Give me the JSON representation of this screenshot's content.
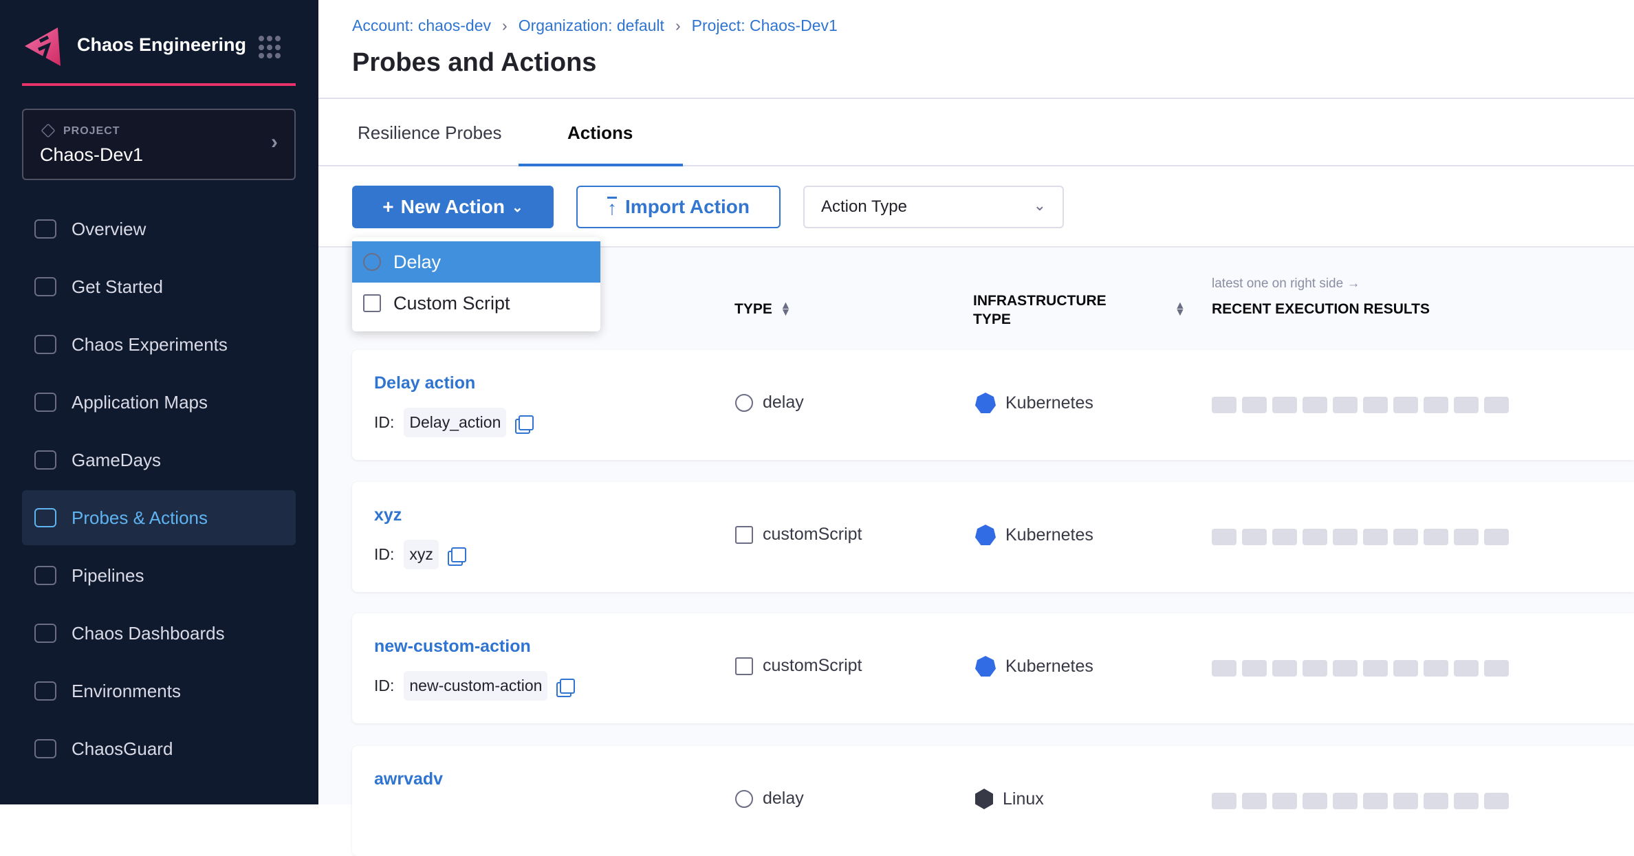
{
  "sidebar": {
    "brand": "Chaos Engineering",
    "project": {
      "label": "PROJECT",
      "name": "Chaos-Dev1"
    },
    "items": [
      {
        "label": "Overview",
        "icon": "home-icon"
      },
      {
        "label": "Get Started",
        "icon": "get-started-icon"
      },
      {
        "label": "Chaos Experiments",
        "icon": "flask-icon"
      },
      {
        "label": "Application Maps",
        "icon": "map-icon"
      },
      {
        "label": "GameDays",
        "icon": "gamepad-icon"
      },
      {
        "label": "Probes & Actions",
        "icon": "probe-icon",
        "active": true
      },
      {
        "label": "Pipelines",
        "icon": "pipeline-icon"
      },
      {
        "label": "Chaos Dashboards",
        "icon": "dashboard-icon"
      },
      {
        "label": "Environments",
        "icon": "environment-icon"
      },
      {
        "label": "ChaosGuard",
        "icon": "lock-icon"
      }
    ],
    "accent": "#e8336a"
  },
  "header": {
    "breadcrumbs": [
      "Account: chaos-dev",
      "Organization: default",
      "Project: Chaos-Dev1"
    ],
    "title": "Probes and Actions"
  },
  "tabs": [
    {
      "label": "Resilience Probes"
    },
    {
      "label": "Actions",
      "active": true
    }
  ],
  "toolbar": {
    "new_action": "New Action",
    "import_action": "Import Action",
    "action_type": "Action Type"
  },
  "dropdown": {
    "items": [
      {
        "label": "Delay",
        "icon": "stopwatch-icon",
        "highlighted": true
      },
      {
        "label": "Custom Script",
        "icon": "terminal-icon"
      }
    ]
  },
  "table": {
    "columns": {
      "type": "TYPE",
      "infra": "INFRASTRUCTURE TYPE",
      "recent": "RECENT EXECUTION RESULTS",
      "recent_hint": "latest one on right side →"
    },
    "id_label": "ID:",
    "rows": [
      {
        "name": "Delay action",
        "id": "Delay_action",
        "type": "delay",
        "infra": "Kubernetes"
      },
      {
        "name": "xyz",
        "id": "xyz",
        "type": "customScript",
        "infra": "Kubernetes"
      },
      {
        "name": "new-custom-action",
        "id": "new-custom-action",
        "type": "customScript",
        "infra": "Kubernetes"
      },
      {
        "name": "awrvadv",
        "type": "delay",
        "infra": "Linux"
      }
    ]
  },
  "colors": {
    "primary": "#3376d0",
    "sidebar_bg": "#0f1a2e",
    "active_nav": "#5fb3f0"
  }
}
